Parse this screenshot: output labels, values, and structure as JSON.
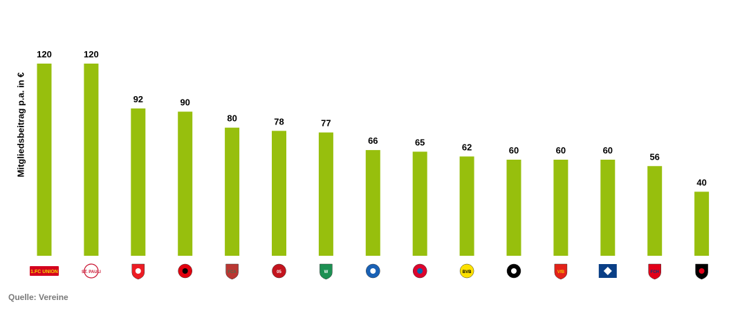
{
  "chart_data": {
    "type": "bar",
    "ylabel": "Mitgliedsbeitrag p.a. in €",
    "ylim": [
      0,
      130
    ],
    "grid": false,
    "bar_color": "#97bf0d",
    "categories": [
      "Union Berlin",
      "FC St. Pauli",
      "1. FC Köln",
      "Eintracht Frankfurt",
      "FC Augsburg",
      "Mainz 05",
      "Werder Bremen",
      "TSG Hoffenheim",
      "FC Bayern München",
      "Borussia Dortmund",
      "Borussia Mönchengladbach",
      "VfB Stuttgart",
      "Hamburger SV",
      "1. FC Heidenheim",
      "SC Freiburg"
    ],
    "values": [
      120,
      120,
      92,
      90,
      80,
      78,
      77,
      66,
      65,
      62,
      60,
      60,
      60,
      56,
      40
    ],
    "logos": [
      {
        "icon": "union-berlin-logo-icon",
        "text": "1.FC UNION",
        "colors": [
          "#d4011d",
          "#f5d400"
        ]
      },
      {
        "icon": "st-pauli-logo-icon",
        "text": "ST. PAULI",
        "colors": [
          "#ffffff",
          "#c8102e"
        ]
      },
      {
        "icon": "koeln-logo-icon",
        "text": "",
        "colors": [
          "#ed1c24",
          "#ffffff"
        ]
      },
      {
        "icon": "frankfurt-logo-icon",
        "text": "",
        "colors": [
          "#e1000f",
          "#000000"
        ]
      },
      {
        "icon": "augsburg-logo-icon",
        "text": "FCA",
        "colors": [
          "#ba3733",
          "#46714d"
        ]
      },
      {
        "icon": "mainz-logo-icon",
        "text": "05",
        "colors": [
          "#c3141e",
          "#ffffff"
        ]
      },
      {
        "icon": "werder-logo-icon",
        "text": "W",
        "colors": [
          "#1d9053",
          "#ffffff"
        ]
      },
      {
        "icon": "hoffenheim-logo-icon",
        "text": "",
        "colors": [
          "#1961b5",
          "#ffffff"
        ]
      },
      {
        "icon": "bayern-logo-icon",
        "text": "",
        "colors": [
          "#dc052d",
          "#0066b2"
        ]
      },
      {
        "icon": "dortmund-logo-icon",
        "text": "BVB",
        "colors": [
          "#fde100",
          "#000000"
        ]
      },
      {
        "icon": "gladbach-logo-icon",
        "text": "",
        "colors": [
          "#000000",
          "#ffffff"
        ]
      },
      {
        "icon": "stuttgart-logo-icon",
        "text": "VfB",
        "colors": [
          "#e32219",
          "#f2c200"
        ]
      },
      {
        "icon": "hsv-logo-icon",
        "text": "",
        "colors": [
          "#0a3f86",
          "#ffffff"
        ]
      },
      {
        "icon": "heidenheim-logo-icon",
        "text": "FCH",
        "colors": [
          "#e2001a",
          "#003b79"
        ]
      },
      {
        "icon": "freiburg-logo-icon",
        "text": "",
        "colors": [
          "#000000",
          "#e2001a"
        ]
      }
    ]
  },
  "footer": {
    "source": "Quelle: Vereine"
  }
}
